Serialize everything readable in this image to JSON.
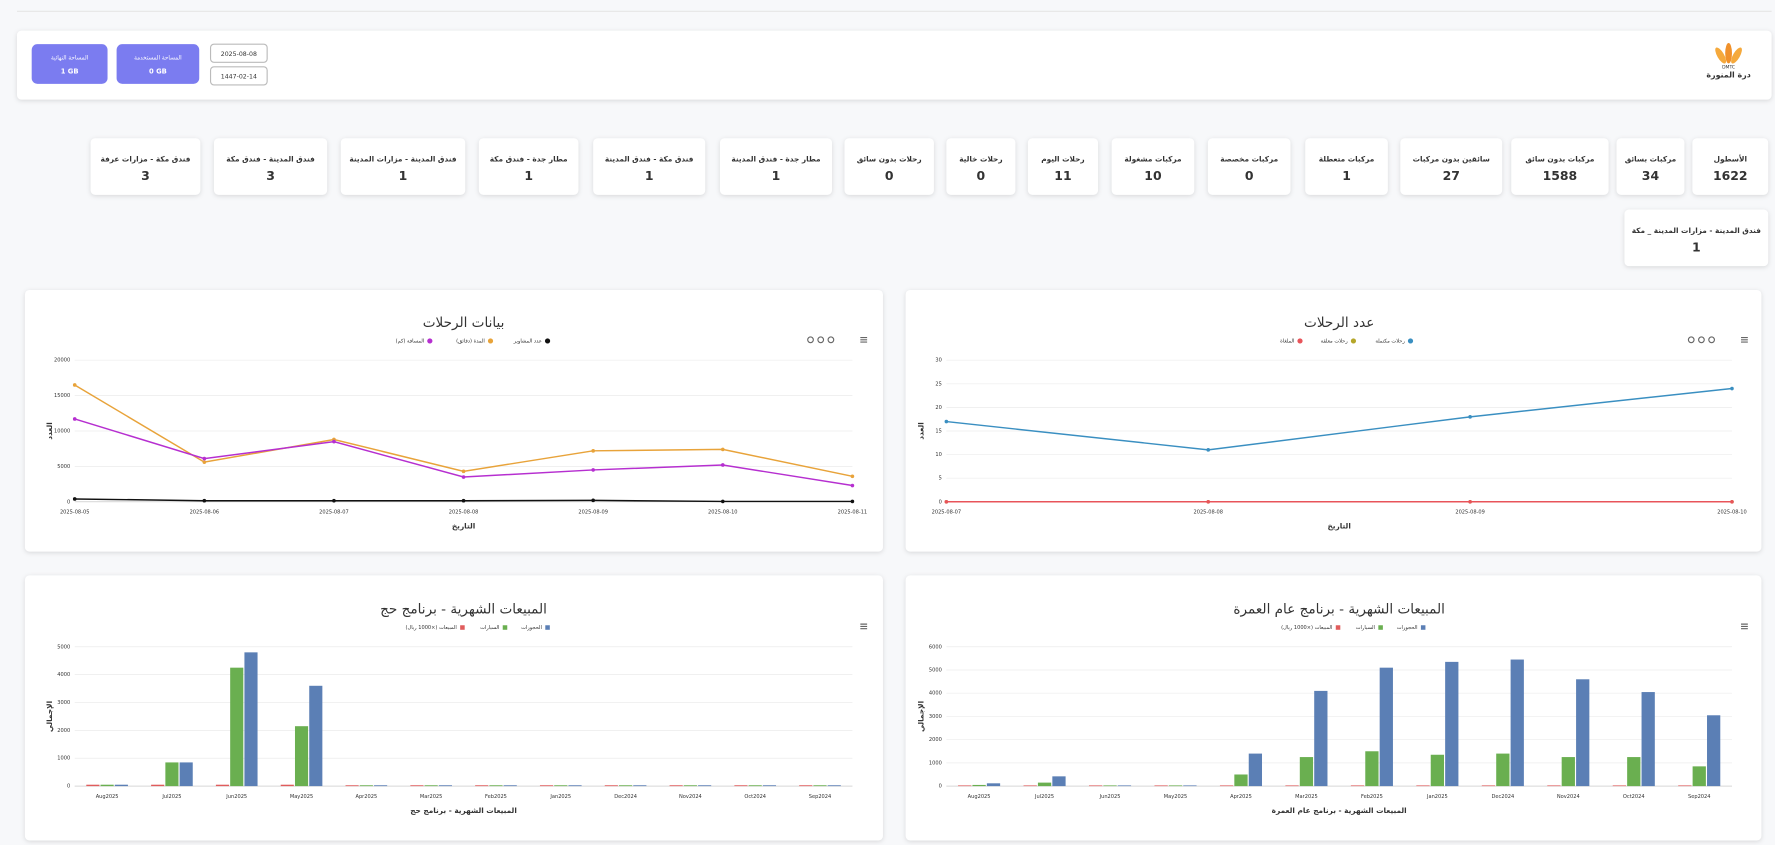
{
  "header": {
    "logo_abbr": "DMTC",
    "logo_name": "درة المنورة",
    "gregorian_date": "2025-08-08",
    "hijri_date": "1447-02-14",
    "used_storage": {
      "label": "المساحة المستخدمة",
      "value": "0 GB"
    },
    "total_storage": {
      "label": "المساحة النهائية",
      "value": "1 GB"
    }
  },
  "stats": [
    {
      "label": "الأسطول",
      "value": 1622
    },
    {
      "label": "مركبات بسائق",
      "value": 34
    },
    {
      "label": "مركبات بدون سائق",
      "value": 1588
    },
    {
      "label": "سائقين بدون مركبات",
      "value": 27
    },
    {
      "label": "مركبات متعطلة",
      "value": 1
    },
    {
      "label": "مركبات مخصصة",
      "value": 0
    },
    {
      "label": "مركبات مشغولة",
      "value": 10
    },
    {
      "label": "رحلات اليوم",
      "value": 11
    },
    {
      "label": "رحلات خالية",
      "value": 0
    },
    {
      "label": "رحلات بدون سائق",
      "value": 0
    },
    {
      "label": "مطار جدة - فندق المدينة",
      "value": 1
    },
    {
      "label": "فندق مكة - فندق المدينة",
      "value": 1
    },
    {
      "label": "مطار جدة - فندق مكة",
      "value": 1
    },
    {
      "label": "فندق المدينة - مزارات المدينة",
      "value": 1
    },
    {
      "label": "فندق المدينة - فندق مكة",
      "value": 3
    },
    {
      "label": "فندق مكة - مزارات عرفة",
      "value": 3
    },
    {
      "label": "فندق المدينة - مزارات المدينة _ مكة",
      "value": 1
    }
  ],
  "chart_data": [
    {
      "type": "line",
      "title": "بيانات الرحلات",
      "x_label": "التاريخ",
      "y_label": "العدد",
      "x": [
        "2025-08-05",
        "2025-08-06",
        "2025-08-07",
        "2025-08-08",
        "2025-08-09",
        "2025-08-10",
        "2025-08-11"
      ],
      "series": [
        {
          "name": "عدد المشاوير",
          "color": "#111111",
          "values": [
            400,
            150,
            150,
            150,
            200,
            50,
            50
          ]
        },
        {
          "name": "المدة (دقائق)",
          "color": "#e8a33a",
          "values": [
            16500,
            5600,
            8800,
            4300,
            7200,
            7400,
            3600
          ]
        },
        {
          "name": "المسافة (كم)",
          "color": "#b62fd0",
          "values": [
            11700,
            6100,
            8500,
            3500,
            4500,
            5200,
            2300
          ]
        }
      ],
      "ylim": [
        0,
        20000
      ],
      "yticks": [
        0,
        5000,
        10000,
        15000,
        20000
      ],
      "grid": true,
      "legend": "top"
    },
    {
      "type": "line",
      "title": "عدد الرحلات",
      "x_label": "التاريخ",
      "y_label": "العدد",
      "x": [
        "2025-08-07",
        "2025-08-08",
        "2025-08-09",
        "2025-08-10"
      ],
      "series": [
        {
          "name": "رحلات مكتملة",
          "color": "#3a8fc1",
          "values": [
            17,
            11,
            18,
            24
          ]
        },
        {
          "name": "رحلات معلقة",
          "color": "#b5a62a",
          "values": [
            0,
            0,
            0,
            0
          ]
        },
        {
          "name": "الملغاة",
          "color": "#e8545a",
          "values": [
            0,
            0,
            0,
            0
          ]
        }
      ],
      "ylim": [
        0,
        30
      ],
      "yticks": [
        0,
        5,
        10,
        15,
        20,
        25,
        30
      ],
      "grid": true,
      "legend": "top"
    },
    {
      "type": "bar",
      "title": "المبيعات الشهرية - برنامج حج",
      "x_label": "المبيعات الشهرية - برنامج حج",
      "y_label": "الإجمالي",
      "categories": [
        "Aug2025",
        "Jul2025",
        "Jun2025",
        "May2025",
        "Apr2025",
        "Mar2025",
        "Feb2025",
        "Jan2025",
        "Dec2024",
        "Nov2024",
        "Oct2024",
        "Sep2024"
      ],
      "series": [
        {
          "name": "الحجوزات",
          "color": "#5b7fb5",
          "values": [
            50,
            850,
            4800,
            3600,
            30,
            30,
            30,
            30,
            30,
            30,
            30,
            30
          ]
        },
        {
          "name": "السيارات",
          "color": "#6aaf50",
          "values": [
            50,
            850,
            4250,
            2150,
            30,
            30,
            30,
            30,
            30,
            30,
            30,
            30
          ]
        },
        {
          "name": "المبيعات (×1000 ريال)",
          "color": "#e05c5c",
          "values": [
            50,
            50,
            50,
            50,
            30,
            30,
            30,
            30,
            30,
            30,
            30,
            30
          ]
        }
      ],
      "ylim": [
        0,
        5000
      ],
      "yticks": [
        0,
        1000,
        2000,
        3000,
        4000,
        5000
      ],
      "grid": true,
      "legend": "top"
    },
    {
      "type": "bar",
      "title": "المبيعات الشهرية - برنامج عام العمرة",
      "x_label": "المبيعات الشهرية - برنامج عام العمرة",
      "y_label": "الإجمالي",
      "categories": [
        "Aug2025",
        "Jul2025",
        "Jun2025",
        "May2025",
        "Apr2025",
        "Mar2025",
        "Feb2025",
        "Jan2025",
        "Dec2024",
        "Nov2024",
        "Oct2024",
        "Sep2024"
      ],
      "series": [
        {
          "name": "الحجوزات",
          "color": "#5b7fb5",
          "values": [
            120,
            420,
            30,
            30,
            1400,
            4100,
            5100,
            5350,
            5450,
            4600,
            4050,
            3050
          ]
        },
        {
          "name": "السيارات",
          "color": "#6aaf50",
          "values": [
            50,
            150,
            30,
            30,
            500,
            1250,
            1500,
            1350,
            1400,
            1250,
            1250,
            850
          ]
        },
        {
          "name": "المبيعات (×1000 ريال)",
          "color": "#e05c5c",
          "values": [
            30,
            30,
            30,
            30,
            30,
            30,
            30,
            30,
            30,
            30,
            30,
            30
          ]
        }
      ],
      "ylim": [
        0,
        6000
      ],
      "yticks": [
        0,
        1000,
        2000,
        3000,
        4000,
        5000,
        6000
      ],
      "grid": true,
      "legend": "top"
    }
  ]
}
